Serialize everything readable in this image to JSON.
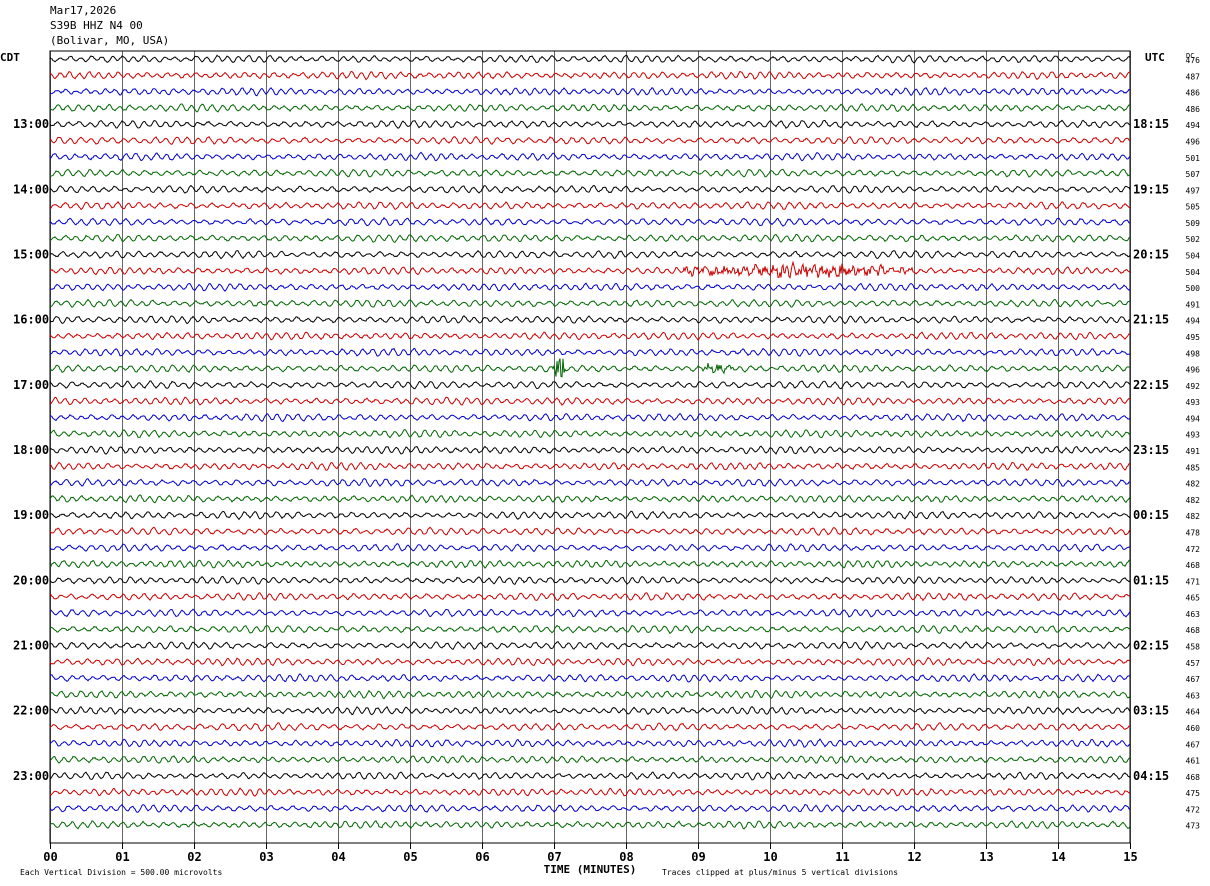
{
  "header": {
    "date": "Mar17,2026",
    "station": "S39B HHZ N4 00",
    "location": "(Bolivar, MO, USA)"
  },
  "chart_data": {
    "type": "line",
    "left_zone_label": "CDT",
    "right_zone_label": "UTC",
    "dc_label": "DC",
    "xlabel": "TIME (MINUTES)",
    "x_ticks": [
      "00",
      "01",
      "02",
      "03",
      "04",
      "05",
      "06",
      "07",
      "08",
      "09",
      "10",
      "11",
      "12",
      "13",
      "14",
      "15"
    ],
    "xlim": [
      0,
      15
    ],
    "trace_colors": [
      "#000000",
      "#cc0000",
      "#0000cc",
      "#006600"
    ],
    "left_hour_labels": [
      "13:00",
      "14:00",
      "15:00",
      "16:00",
      "17:00",
      "18:00",
      "19:00",
      "20:00",
      "21:00",
      "22:00",
      "23:00"
    ],
    "right_hour_labels": [
      "18:15",
      "19:15",
      "20:15",
      "21:15",
      "22:15",
      "23:15",
      "00:15",
      "01:15",
      "02:15",
      "03:15",
      "04:15"
    ],
    "hour_label_start_row": 4,
    "rows_per_hour": 4,
    "dc_values": [
      476,
      487,
      486,
      486,
      494,
      496,
      501,
      507,
      497,
      505,
      509,
      502,
      504,
      504,
      500,
      491,
      494,
      495,
      498,
      496,
      492,
      493,
      494,
      493,
      491,
      485,
      482,
      482,
      482,
      478,
      472,
      468,
      471,
      465,
      463,
      468,
      458,
      457,
      467,
      463,
      464,
      460,
      467,
      461,
      468,
      475,
      472,
      473
    ],
    "events": [
      {
        "row": 13,
        "start_min": 8.8,
        "end_min": 12.0,
        "amplitude": 2.2
      },
      {
        "row": 19,
        "start_min": 7.0,
        "end_min": 7.15,
        "amplitude": 6.0
      },
      {
        "row": 19,
        "start_min": 9.0,
        "end_min": 9.5,
        "amplitude": 1.5
      }
    ],
    "footer_scale": "Each Vertical Division =  500.00 microvolts",
    "footer_clip": "Traces clipped at plus/minus 5 vertical divisions"
  }
}
